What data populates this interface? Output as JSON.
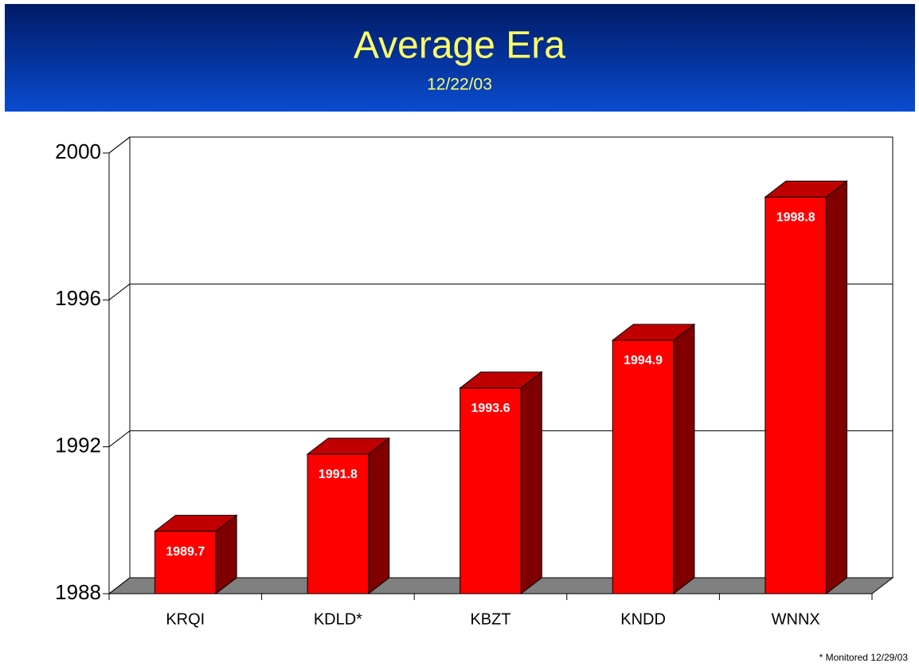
{
  "chart_data": {
    "type": "bar3d",
    "title": "Average Era",
    "subtitle": "12/22/03",
    "categories": [
      "KRQI",
      "KDLD*",
      "KBZT",
      "KNDD",
      "WNNX"
    ],
    "values": [
      1989.7,
      1991.8,
      1993.6,
      1994.9,
      1998.8
    ],
    "color": "#ff0000",
    "ylim": [
      1988,
      2000
    ],
    "yticks": [
      1988,
      1992,
      1996,
      2000
    ],
    "grid": true,
    "footnote": "* Monitored 12/29/03"
  }
}
